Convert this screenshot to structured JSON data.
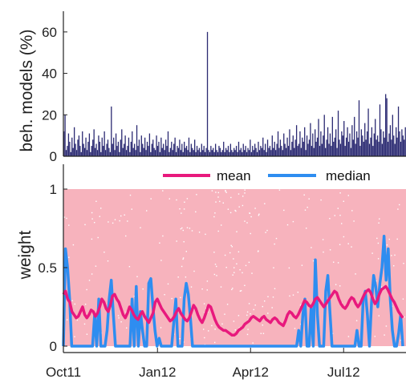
{
  "chart_data": [
    {
      "type": "bar",
      "ylabel": "beh. models (%)",
      "ylim": [
        0,
        70
      ],
      "yticks": [
        "0",
        "20",
        "40",
        "60"
      ],
      "xlabel": "",
      "color": "#2b2a72",
      "grid": false,
      "series": [
        {
          "x_start": "2011-10-01",
          "x_end": "2012-08-31",
          "values": [
            12,
            20,
            3,
            5,
            11,
            7,
            2,
            9,
            4,
            14,
            6,
            3,
            8,
            10,
            5,
            2,
            12,
            6,
            4,
            9,
            3,
            7,
            11,
            2,
            5,
            8,
            13,
            4,
            6,
            3,
            10,
            7,
            2,
            9,
            5,
            12,
            3,
            6,
            8,
            4,
            2,
            24,
            6,
            9,
            3,
            11,
            5,
            7,
            2,
            8,
            13,
            4,
            6,
            10,
            3,
            5,
            9,
            2,
            7,
            12,
            4,
            6,
            3,
            15,
            5,
            8,
            2,
            10,
            6,
            4,
            9,
            3,
            7,
            5,
            11,
            2,
            6,
            8,
            4,
            3,
            10,
            5,
            7,
            2,
            9,
            4,
            6,
            3,
            8,
            5,
            12,
            2,
            4,
            7,
            3,
            6,
            9,
            2,
            5,
            4,
            8,
            3,
            6,
            2,
            7,
            4,
            5,
            3,
            9,
            2,
            6,
            4,
            3,
            8,
            2,
            5,
            3,
            4,
            2,
            6,
            3,
            5,
            2,
            4,
            60,
            3,
            2,
            5,
            3,
            4,
            2,
            6,
            3,
            2,
            5,
            4,
            2,
            3,
            7,
            2,
            4,
            3,
            5,
            2,
            6,
            3,
            2,
            4,
            3,
            5,
            2,
            7,
            3,
            4,
            2,
            6,
            3,
            5,
            2,
            4,
            3,
            8,
            2,
            5,
            3,
            6,
            4,
            2,
            7,
            3,
            5,
            4,
            9,
            3,
            6,
            2,
            8,
            4,
            5,
            3,
            10,
            4,
            7,
            3,
            6,
            12,
            4,
            8,
            5,
            3,
            11,
            6,
            4,
            9,
            5,
            13,
            3,
            7,
            10,
            4,
            8,
            15,
            5,
            6,
            12,
            4,
            9,
            7,
            14,
            3,
            10,
            6,
            8,
            16,
            5,
            11,
            4,
            13,
            7,
            9,
            18,
            5,
            12,
            6,
            10,
            20,
            4,
            8,
            14,
            6,
            11,
            5,
            19,
            7,
            9,
            13,
            4,
            22,
            8,
            6,
            12,
            10,
            17,
            5,
            9,
            14,
            7,
            11,
            4,
            15,
            8,
            19,
            6,
            12,
            9,
            27,
            5,
            13,
            10,
            7,
            16,
            8,
            12,
            23,
            6,
            9,
            14,
            5,
            11,
            18,
            8,
            10,
            7,
            25,
            13,
            6,
            12,
            9,
            30,
            28,
            7,
            11,
            15,
            8,
            20,
            10,
            6,
            14,
            9,
            24,
            12,
            7,
            13,
            10,
            8,
            14
          ]
        }
      ]
    },
    {
      "type": "line",
      "ylabel": "weight",
      "ylim": [
        0,
        1
      ],
      "yticks": [
        "0",
        "0.5",
        "1"
      ],
      "x_start": "2011-10-01",
      "x_end": "2012-08-31",
      "xticks": [
        {
          "date": "2011-10-01",
          "label": "Oct11"
        },
        {
          "date": "2012-01-01",
          "label": "Jan12"
        },
        {
          "date": "2012-04-01",
          "label": "Apr12"
        },
        {
          "date": "2012-07-01",
          "label": "Jul12"
        }
      ],
      "legend_position": "top",
      "background_scatter_color": "#f7b3bd",
      "grid": false,
      "series": [
        {
          "name": "mean",
          "color": "#e8197d",
          "values": [
            0.33,
            0.35,
            0.3,
            0.28,
            0.22,
            0.2,
            0.18,
            0.19,
            0.22,
            0.25,
            0.2,
            0.18,
            0.2,
            0.23,
            0.22,
            0.19,
            0.21,
            0.25,
            0.3,
            0.28,
            0.24,
            0.22,
            0.26,
            0.32,
            0.33,
            0.3,
            0.28,
            0.24,
            0.2,
            0.18,
            0.21,
            0.25,
            0.23,
            0.2,
            0.18,
            0.17,
            0.2,
            0.22,
            0.19,
            0.17,
            0.15,
            0.18,
            0.21,
            0.28,
            0.3,
            0.27,
            0.24,
            0.22,
            0.2,
            0.18,
            0.16,
            0.17,
            0.19,
            0.22,
            0.24,
            0.21,
            0.19,
            0.17,
            0.16,
            0.18,
            0.22,
            0.26,
            0.24,
            0.2,
            0.17,
            0.15,
            0.18,
            0.22,
            0.26,
            0.25,
            0.21,
            0.17,
            0.14,
            0.12,
            0.11,
            0.1,
            0.1,
            0.09,
            0.08,
            0.07,
            0.07,
            0.08,
            0.1,
            0.11,
            0.12,
            0.14,
            0.15,
            0.16,
            0.18,
            0.19,
            0.18,
            0.17,
            0.16,
            0.18,
            0.19,
            0.17,
            0.16,
            0.15,
            0.17,
            0.18,
            0.17,
            0.15,
            0.14,
            0.13,
            0.16,
            0.2,
            0.22,
            0.21,
            0.19,
            0.18,
            0.2,
            0.23,
            0.26,
            0.29,
            0.28,
            0.26,
            0.25,
            0.27,
            0.3,
            0.31,
            0.29,
            0.27,
            0.25,
            0.27,
            0.29,
            0.31,
            0.33,
            0.35,
            0.34,
            0.3,
            0.27,
            0.25,
            0.24,
            0.26,
            0.29,
            0.31,
            0.3,
            0.27,
            0.25,
            0.27,
            0.3,
            0.33,
            0.35,
            0.36,
            0.34,
            0.3,
            0.27,
            0.29,
            0.33,
            0.36,
            0.37,
            0.38,
            0.36,
            0.33,
            0.3,
            0.28,
            0.25,
            0.22,
            0.2,
            0.18
          ]
        },
        {
          "name": "median",
          "color": "#2e8df0",
          "values": [
            0.0,
            0.62,
            0.5,
            0.3,
            0.0,
            0.0,
            0.0,
            0.0,
            0.0,
            0.0,
            0.0,
            0.0,
            0.0,
            0.0,
            0.0,
            0.2,
            0.0,
            0.3,
            0.0,
            0.0,
            0.0,
            0.1,
            0.3,
            0.42,
            0.2,
            0.0,
            0.0,
            0.0,
            0.0,
            0.0,
            0.0,
            0.0,
            0.0,
            0.3,
            0.0,
            0.38,
            0.0,
            0.22,
            0.1,
            0.0,
            0.0,
            0.4,
            0.43,
            0.25,
            0.1,
            0.0,
            0.05,
            0.0,
            0.0,
            0.0,
            0.0,
            0.0,
            0.0,
            0.15,
            0.3,
            0.0,
            0.0,
            0.0,
            0.3,
            0.4,
            0.33,
            0.18,
            0.0,
            0.0,
            0.0,
            0.0,
            0.0,
            0.0,
            0.0,
            0.0,
            0.0,
            0.0,
            0.0,
            0.0,
            0.0,
            0.0,
            0.0,
            0.0,
            0.0,
            0.0,
            0.0,
            0.0,
            0.0,
            0.0,
            0.0,
            0.0,
            0.0,
            0.0,
            0.0,
            0.0,
            0.0,
            0.0,
            0.0,
            0.0,
            0.0,
            0.0,
            0.0,
            0.0,
            0.0,
            0.0,
            0.0,
            0.0,
            0.0,
            0.0,
            0.0,
            0.0,
            0.0,
            0.0,
            0.0,
            0.0,
            0.0,
            0.0,
            0.0,
            0.1,
            0.0,
            0.2,
            0.3,
            0.0,
            0.0,
            0.25,
            0.0,
            0.55,
            0.2,
            0.0,
            0.0,
            0.0,
            0.35,
            0.45,
            0.22,
            0.0,
            0.0,
            0.0,
            0.0,
            0.0,
            0.0,
            0.0,
            0.0,
            0.0,
            0.0,
            0.0,
            0.0,
            0.1,
            0.0,
            0.0,
            0.3,
            0.35,
            0.2,
            0.0,
            0.28,
            0.45,
            0.38,
            0.25,
            0.4,
            0.5,
            0.7,
            0.42,
            0.62,
            0.3,
            0.1,
            0.0,
            0.0,
            0.08,
            0.2,
            0.0
          ]
        }
      ]
    }
  ]
}
